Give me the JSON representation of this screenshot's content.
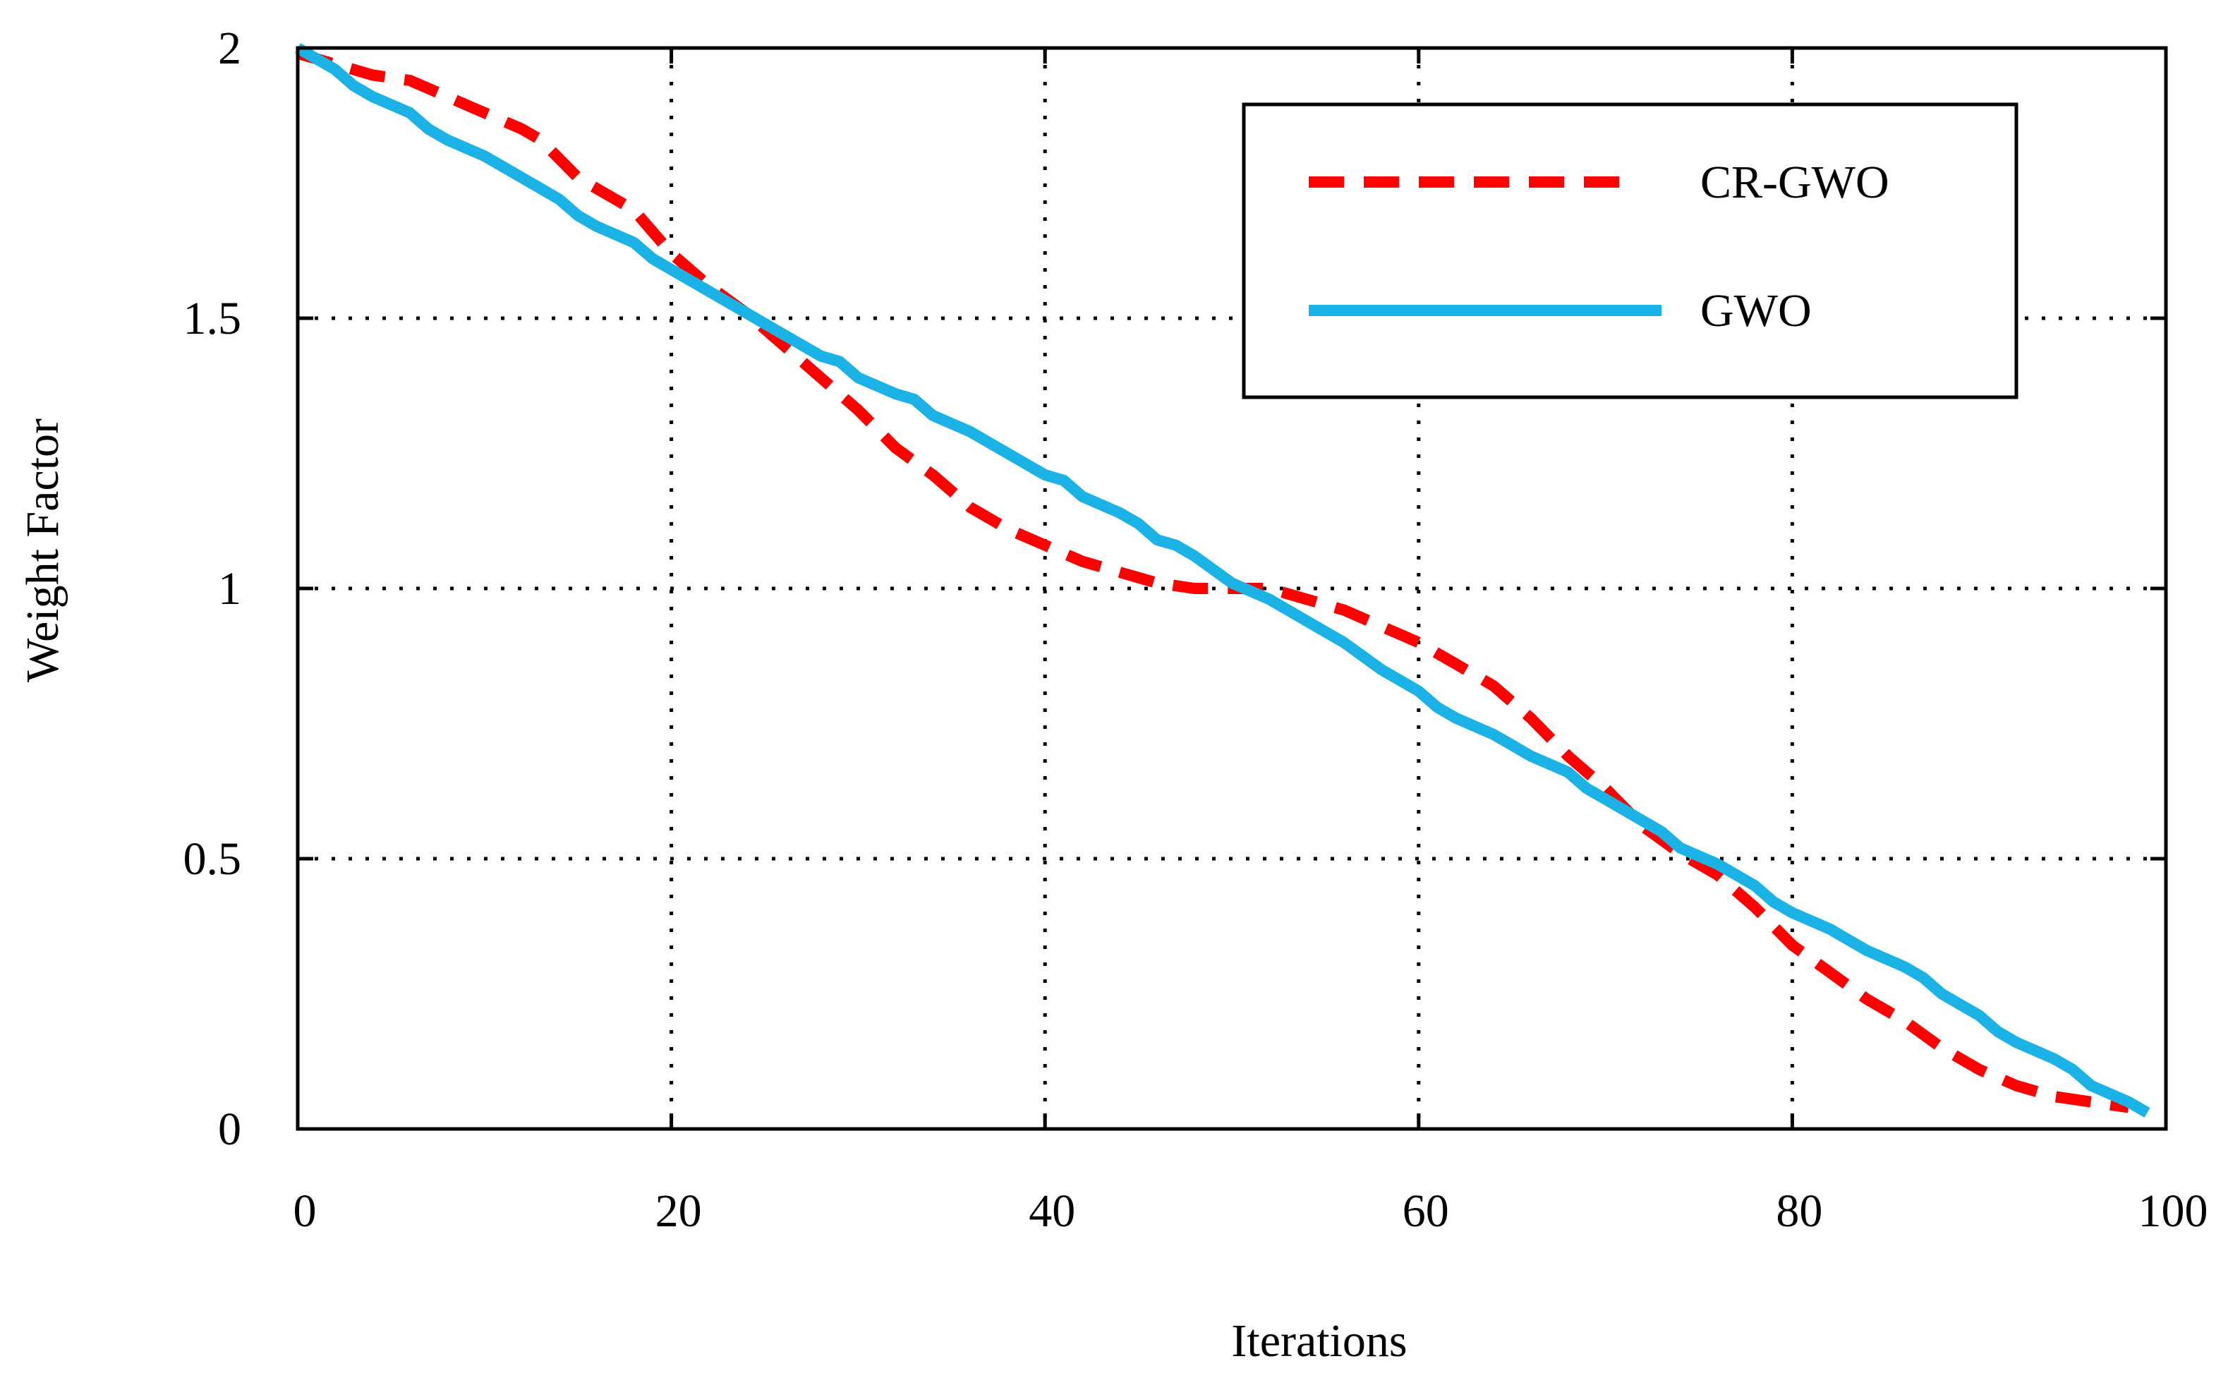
{
  "chart_data": {
    "type": "line",
    "title": "",
    "xlabel": "Iterations",
    "ylabel": "Weight Factor",
    "xlim": [
      0,
      100
    ],
    "ylim": [
      0,
      2
    ],
    "xticks": [
      0,
      20,
      40,
      60,
      80,
      100
    ],
    "yticks": [
      0,
      0.5,
      1,
      1.5,
      2
    ],
    "xtick_labels": [
      "0",
      "20",
      "40",
      "60",
      "80",
      "100"
    ],
    "ytick_labels": [
      "0",
      "0.5",
      "1",
      "1.5",
      "2"
    ],
    "grid": true,
    "legend_position": "top-right",
    "series": [
      {
        "name": "CR-GWO",
        "color": "#ff0000",
        "style": "dashed",
        "x": [
          0,
          2,
          4,
          6,
          8,
          10,
          12,
          13,
          15,
          17,
          18,
          20,
          22,
          24,
          26,
          28,
          30,
          32,
          34,
          36,
          38,
          40,
          42,
          44,
          46,
          48,
          50,
          52,
          54,
          56,
          58,
          60,
          62,
          64,
          66,
          68,
          70,
          72,
          74,
          76,
          78,
          80,
          82,
          84,
          86,
          88,
          90,
          92,
          94,
          96,
          98
        ],
        "y": [
          1.99,
          1.97,
          1.95,
          1.94,
          1.91,
          1.88,
          1.85,
          1.83,
          1.76,
          1.72,
          1.7,
          1.62,
          1.56,
          1.51,
          1.45,
          1.39,
          1.33,
          1.26,
          1.21,
          1.15,
          1.11,
          1.08,
          1.05,
          1.03,
          1.01,
          1.0,
          1.0,
          1.0,
          0.98,
          0.96,
          0.93,
          0.9,
          0.86,
          0.82,
          0.76,
          0.69,
          0.63,
          0.56,
          0.51,
          0.47,
          0.41,
          0.34,
          0.29,
          0.24,
          0.2,
          0.15,
          0.11,
          0.08,
          0.06,
          0.05,
          0.04
        ]
      },
      {
        "name": "GWO",
        "color": "#1bb2e6",
        "style": "solid",
        "x": [
          0,
          2,
          3,
          4,
          6,
          7,
          8,
          10,
          12,
          14,
          15,
          16,
          18,
          19,
          20,
          22,
          24,
          26,
          28,
          29,
          30,
          32,
          33,
          34,
          36,
          38,
          40,
          41,
          42,
          44,
          45,
          46,
          47,
          48,
          50,
          52,
          54,
          55,
          56,
          58,
          60,
          61,
          62,
          64,
          65,
          66,
          68,
          69,
          70,
          72,
          73,
          74,
          76,
          78,
          79,
          80,
          82,
          83,
          84,
          86,
          87,
          88,
          90,
          91,
          92,
          94,
          95,
          96,
          98,
          99
        ],
        "y": [
          2.0,
          1.96,
          1.93,
          1.91,
          1.88,
          1.85,
          1.83,
          1.8,
          1.76,
          1.72,
          1.69,
          1.67,
          1.64,
          1.61,
          1.59,
          1.55,
          1.51,
          1.47,
          1.43,
          1.42,
          1.39,
          1.36,
          1.35,
          1.32,
          1.29,
          1.25,
          1.21,
          1.2,
          1.17,
          1.14,
          1.12,
          1.09,
          1.08,
          1.06,
          1.01,
          0.98,
          0.94,
          0.92,
          0.9,
          0.85,
          0.81,
          0.78,
          0.76,
          0.73,
          0.71,
          0.69,
          0.66,
          0.63,
          0.61,
          0.57,
          0.55,
          0.52,
          0.49,
          0.45,
          0.42,
          0.4,
          0.37,
          0.35,
          0.33,
          0.3,
          0.28,
          0.25,
          0.21,
          0.18,
          0.16,
          0.13,
          0.11,
          0.08,
          0.05,
          0.03
        ]
      }
    ]
  }
}
